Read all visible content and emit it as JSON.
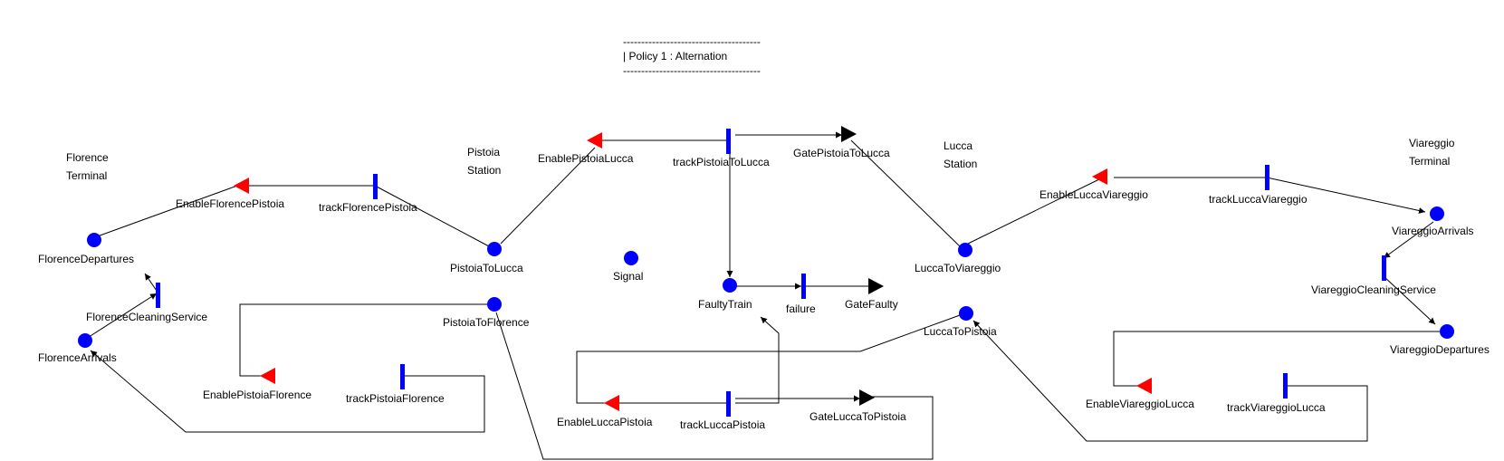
{
  "policy": {
    "divider": "--------------------------------------",
    "label": "| Policy 1 : Alternation"
  },
  "stations": {
    "florence": [
      "Florence",
      "Terminal"
    ],
    "pistoia": [
      "Pistoia",
      "Station"
    ],
    "lucca": [
      "Lucca",
      "Station"
    ],
    "viareggio": [
      "Viareggio",
      "Terminal"
    ]
  },
  "places": {
    "florence_departures": "FlorenceDepartures",
    "florence_arrivals": "FlorenceArrivals",
    "pistoia_to_lucca": "PistoiaToLucca",
    "pistoia_to_florence": "PistoiaToFlorence",
    "signal": "Signal",
    "faulty_train": "FaultyTrain",
    "lucca_to_viareggio": "LuccaToViareggio",
    "lucca_to_pistoia": "LuccaToPistoia",
    "viareggio_arrivals": "ViareggioArrivals",
    "viareggio_departures": "ViareggioDepartures"
  },
  "transitions": {
    "track_florence_pistoia": "trackFlorencePistoia",
    "florence_cleaning_service": "FlorenceCleaningService",
    "track_pistoia_florence": "trackPistoiaFlorence",
    "track_pistoia_to_lucca": "trackPistoiaToLucca",
    "failure": "failure",
    "track_lucca_pistoia": "trackLuccaPistoia",
    "track_lucca_viareggio": "trackLuccaViareggio",
    "viareggio_cleaning_service": "ViareggioCleaningService",
    "track_viareggio_lucca": "trackViareggioLucca"
  },
  "enables": {
    "enable_florence_pistoia": "EnableFlorencePistoia",
    "enable_pistoia_florence": "EnablePistoiaFlorence",
    "enable_pistoia_lucca": "EnablePistoiaLucca",
    "enable_lucca_pistoia": "EnableLuccaPistoia",
    "enable_lucca_viareggio": "EnableLuccaViareggio",
    "enable_viareggio_lucca": "EnableViareggioLucca"
  },
  "gates": {
    "gate_pistoia_to_lucca": "GatePistoiaToLucca",
    "gate_faulty": "GateFaulty",
    "gate_lucca_to_pistoia": "GateLuccaToPistoia"
  },
  "colors": {
    "place": "#0000ff",
    "transition": "#0000ff",
    "enable": "#ff0000",
    "gate": "#000000",
    "arc": "#000000"
  }
}
